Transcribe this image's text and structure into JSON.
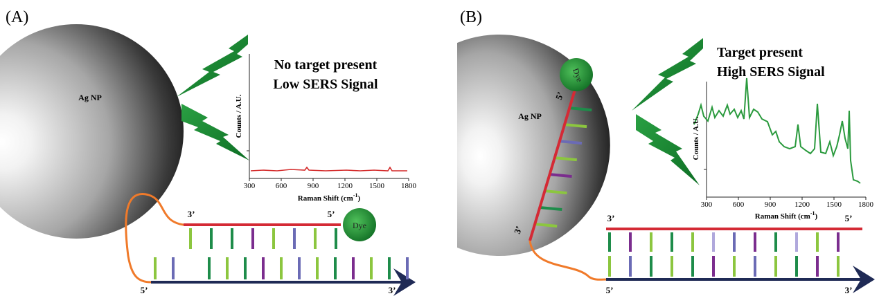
{
  "panels": [
    {
      "label": "(A)",
      "particle": "Ag NP",
      "title": [
        "No target present",
        "Low SERS Signal"
      ],
      "chart": {
        "x_label": [
          "Raman Shift (cm",
          "-1",
          ")"
        ],
        "y_label": "Counts / A.U.",
        "xlim": [
          300,
          1800
        ],
        "xticks": [
          300,
          600,
          900,
          1200,
          1500,
          1800
        ]
      },
      "dye": "Dye",
      "probe_ends": [
        "3’",
        "5’"
      ],
      "target_ends": [
        "5’",
        "3’"
      ]
    },
    {
      "label": "(B)",
      "particle": "Ag NP",
      "title": [
        "Target present",
        "High SERS Signal"
      ],
      "chart": {
        "x_label": [
          "Raman Shift (cm",
          "-1",
          ")"
        ],
        "y_label": "Counts / A.U.",
        "xlim": [
          300,
          1800
        ],
        "xticks": [
          300,
          600,
          900,
          1200,
          1500,
          1800
        ]
      },
      "dye": "Dye",
      "probe_ends": [
        "5’",
        "3’"
      ],
      "duplex_top_ends": [
        "3’",
        "5’"
      ],
      "duplex_bottom_ends": [
        "5’",
        "3’"
      ]
    }
  ]
}
